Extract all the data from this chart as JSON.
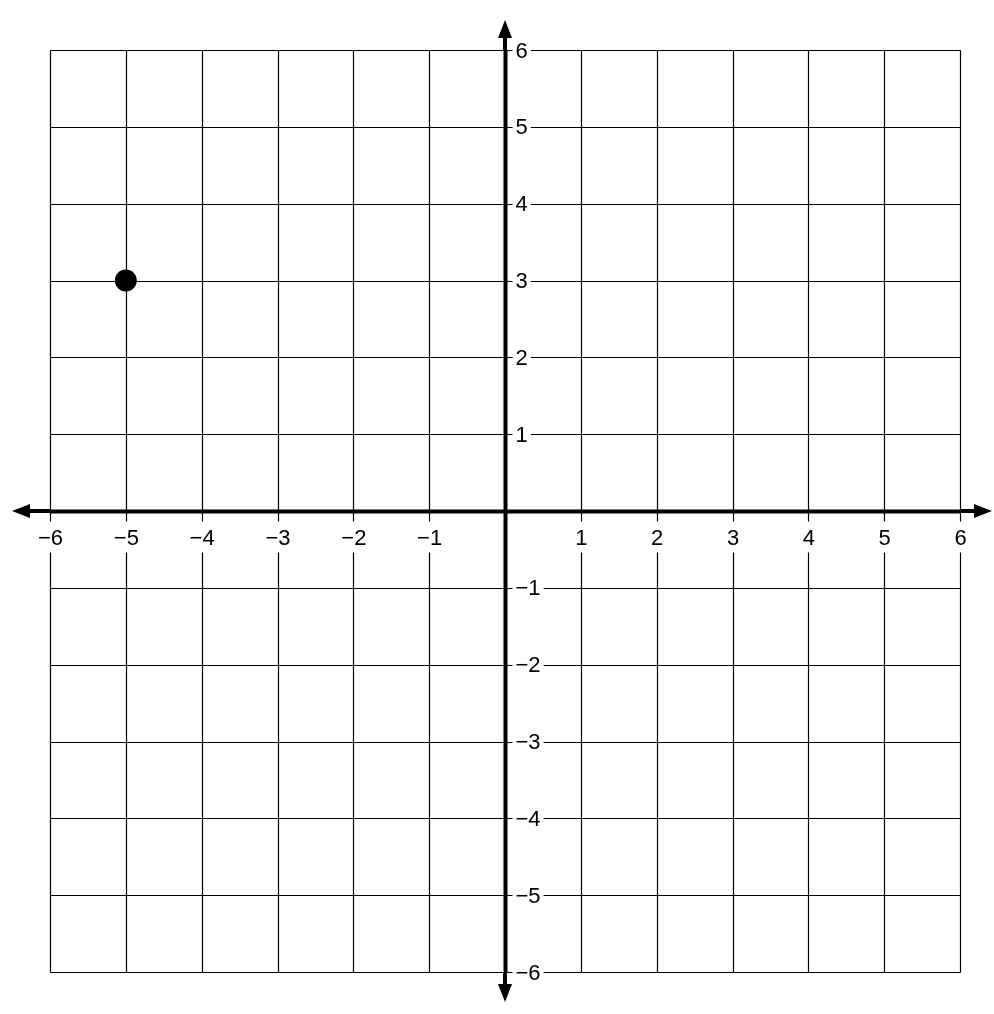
{
  "chart_data": {
    "type": "scatter",
    "x": [
      -5
    ],
    "values": [
      3
    ],
    "color": "#000000",
    "marker": "circle",
    "grid": true,
    "xlim": [
      -6,
      6
    ],
    "ylim": [
      -6,
      6
    ],
    "xticks": [
      {
        "value": -6,
        "label": "−6"
      },
      {
        "value": -5,
        "label": "−5"
      },
      {
        "value": -4,
        "label": "−4"
      },
      {
        "value": -3,
        "label": "−3"
      },
      {
        "value": -2,
        "label": "−2"
      },
      {
        "value": -1,
        "label": "−1"
      },
      1,
      2,
      3,
      4,
      5,
      6
    ],
    "yticks": [
      {
        "value": -6,
        "label": "−6"
      },
      {
        "value": -5,
        "label": "−5"
      },
      {
        "value": -4,
        "label": "−4"
      },
      {
        "value": -3,
        "label": "−3"
      },
      {
        "value": -2,
        "label": "−2"
      },
      {
        "value": -1,
        "label": "−1"
      },
      1,
      2,
      3,
      4,
      5,
      6
    ]
  }
}
